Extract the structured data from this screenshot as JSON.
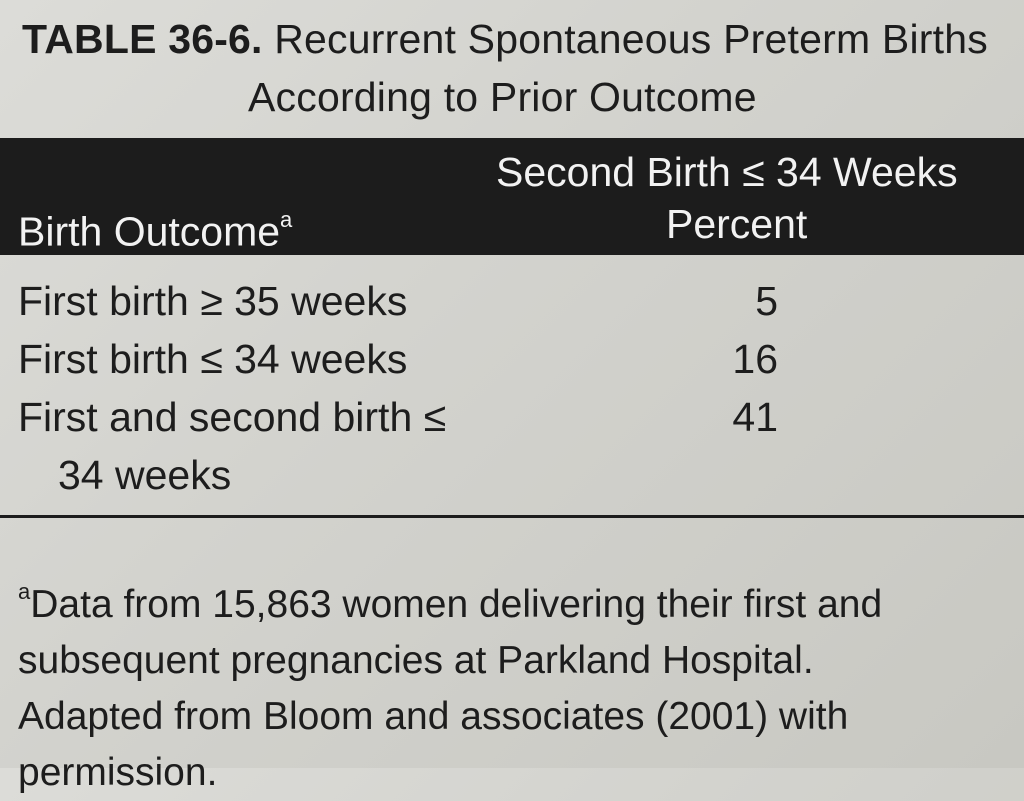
{
  "table": {
    "label": "TABLE 36-6.",
    "title_line1": "Recurrent Spontaneous Preterm Births",
    "title_line2": "According to Prior Outcome",
    "header": {
      "col1": "Birth Outcome",
      "col1_note": "a",
      "col2_top": "Second Birth ≤ 34 Weeks",
      "col2_bottom": "Percent"
    },
    "rows": [
      {
        "outcome": "First birth ≥ 35 weeks",
        "value": "5"
      },
      {
        "outcome": "First birth ≤ 34 weeks",
        "value": "16"
      },
      {
        "outcome_line1": "First and second birth ≤",
        "outcome_line2": "34 weeks",
        "value": "41"
      }
    ],
    "footnote_mark": "a",
    "footnote_line1": "Data from 15,863 women delivering their first and",
    "footnote_line2": "subsequent pregnancies at Parkland Hospital.",
    "source": "Adapted from Bloom and associates (2001) with permission."
  }
}
